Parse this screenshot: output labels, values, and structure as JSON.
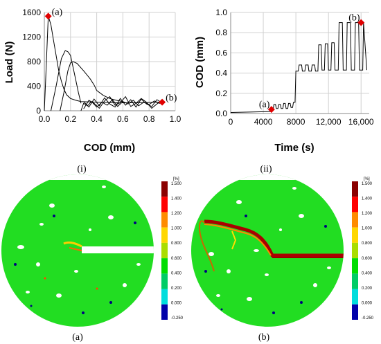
{
  "chart_data": [
    {
      "type": "line",
      "xlabel": "COD (mm)",
      "ylabel": "Load (N)",
      "xlim": [
        0,
        1.0
      ],
      "ylim": [
        0,
        1600
      ],
      "xticks": [
        "0.0",
        "0.2",
        "0.4",
        "0.6",
        "0.8",
        "1.0"
      ],
      "yticks": [
        "0",
        "400",
        "800",
        "1200",
        "1600"
      ],
      "grid": true,
      "series": [
        {
          "x": [
            0,
            0.01,
            0.03,
            0.05,
            0.07,
            0.09,
            0.11,
            0.13,
            0.15,
            0.17,
            0.2,
            0.24,
            0.28,
            0.33,
            0.4,
            0.48,
            0.56,
            0.64,
            0.72,
            0.8,
            0.88,
            0.9
          ],
          "values": [
            0,
            500,
            1540,
            1400,
            1150,
            900,
            650,
            480,
            350,
            260,
            200,
            170,
            150,
            145,
            140,
            135,
            130,
            130,
            130,
            135,
            140,
            140
          ]
        },
        {
          "x": [
            0.05,
            0.09,
            0.13,
            0.16,
            0.18,
            0.2,
            0.22,
            0.24,
            0.26,
            0.28
          ],
          "values": [
            0,
            400,
            850,
            980,
            960,
            900,
            700,
            500,
            300,
            120
          ]
        },
        {
          "x": [
            0.12,
            0.15,
            0.18,
            0.2,
            0.22,
            0.25,
            0.3,
            0.35,
            0.38,
            0.4,
            0.45,
            0.5,
            0.55,
            0.6
          ],
          "values": [
            0,
            300,
            650,
            780,
            800,
            770,
            650,
            520,
            420,
            330,
            250,
            200,
            170,
            150
          ]
        },
        {
          "x": [
            0.28,
            0.3,
            0.33,
            0.36,
            0.4,
            0.44,
            0.48,
            0.52,
            0.56,
            0.6,
            0.64,
            0.68,
            0.72,
            0.76,
            0.8,
            0.84,
            0.88,
            0.9
          ],
          "values": [
            0,
            120,
            80,
            150,
            60,
            140,
            90,
            180,
            70,
            150,
            110,
            170,
            80,
            140,
            100,
            160,
            120,
            140
          ]
        },
        {
          "x": [
            0.3,
            0.34,
            0.38,
            0.42,
            0.46,
            0.5,
            0.54,
            0.58,
            0.62,
            0.66,
            0.7,
            0.74,
            0.78,
            0.82,
            0.86,
            0.9
          ],
          "values": [
            150,
            60,
            190,
            80,
            210,
            110,
            60,
            200,
            90,
            180,
            60,
            190,
            110,
            70,
            180,
            130
          ]
        },
        {
          "x": [
            0.3,
            0.34,
            0.38,
            0.42,
            0.46,
            0.5,
            0.54,
            0.58,
            0.62,
            0.66,
            0.7,
            0.74,
            0.78,
            0.82,
            0.86,
            0.9
          ],
          "values": [
            30,
            170,
            120,
            40,
            160,
            230,
            90,
            130,
            230,
            70,
            120,
            200,
            140,
            40,
            110,
            170
          ]
        }
      ],
      "markers": [
        {
          "label": "(a)",
          "x": 0.03,
          "y": 1540
        },
        {
          "label": "(b)",
          "x": 0.9,
          "y": 140
        }
      ]
    },
    {
      "type": "line",
      "xlabel": "Time (s)",
      "ylabel": "COD (mm)",
      "xlim": [
        0,
        17000
      ],
      "ylim": [
        0,
        1.0
      ],
      "xticks": [
        {
          "value": 0,
          "label": "0"
        },
        {
          "value": 4000,
          "label": "4000"
        },
        {
          "value": 8000,
          "label": "8000"
        },
        {
          "value": 12000,
          "label": "12,000"
        },
        {
          "value": 16000,
          "label": "16,000"
        }
      ],
      "yticks": [
        "0.0",
        "0.2",
        "0.4",
        "0.6",
        "0.8",
        "1.0"
      ],
      "grid": true,
      "series": [
        {
          "x": [
            0,
            5000,
            5200,
            5300,
            5500,
            5600,
            5800,
            5900,
            6100,
            6200,
            6400,
            6500,
            6700,
            6800,
            7000,
            7100,
            7300,
            7400,
            7600,
            7700,
            7900,
            8000,
            8300,
            8400,
            8700,
            8800,
            9100,
            9200,
            9500,
            9600,
            9900,
            10000,
            10300,
            10400,
            10700,
            10800,
            11100,
            11200,
            11500,
            11600,
            11900,
            12000,
            12300,
            12400,
            12700,
            12800,
            13200,
            13300,
            13700,
            13800,
            14200,
            14300,
            14700,
            14800,
            15200,
            15300,
            15700,
            15800,
            16200,
            16300,
            16700
          ],
          "values": [
            0.01,
            0.02,
            0.03,
            0.09,
            0.09,
            0.05,
            0.05,
            0.09,
            0.09,
            0.05,
            0.05,
            0.1,
            0.1,
            0.05,
            0.05,
            0.1,
            0.1,
            0.06,
            0.06,
            0.11,
            0.11,
            0.42,
            0.42,
            0.48,
            0.48,
            0.42,
            0.42,
            0.48,
            0.48,
            0.42,
            0.42,
            0.48,
            0.48,
            0.42,
            0.42,
            0.68,
            0.68,
            0.43,
            0.43,
            0.69,
            0.69,
            0.43,
            0.43,
            0.7,
            0.7,
            0.43,
            0.43,
            0.9,
            0.9,
            0.43,
            0.43,
            0.9,
            0.9,
            0.43,
            0.43,
            0.9,
            0.9,
            0.43,
            0.43,
            0.9,
            0.43
          ]
        }
      ],
      "markers": [
        {
          "label": "(a)",
          "x": 5000,
          "y": 0.04
        },
        {
          "label": "(b)",
          "x": 16000,
          "y": 0.9
        }
      ]
    }
  ],
  "panels": {
    "top_left": "(i)",
    "top_right": "(ii)",
    "bottom_left": "(a)",
    "bottom_right": "(b)"
  },
  "scale_bar": {
    "unit": "[%]",
    "ticks": [
      "1.500",
      "1.400",
      "1.200",
      "1.000",
      "0.800",
      "0.600",
      "0.400",
      "0.200",
      "0.000",
      "-0.250"
    ],
    "colors": [
      "#8b0000",
      "#ff0000",
      "#ff8c00",
      "#ffd700",
      "#aadd00",
      "#00dd00",
      "#00cc66",
      "#00dddd",
      "#0000aa"
    ]
  }
}
